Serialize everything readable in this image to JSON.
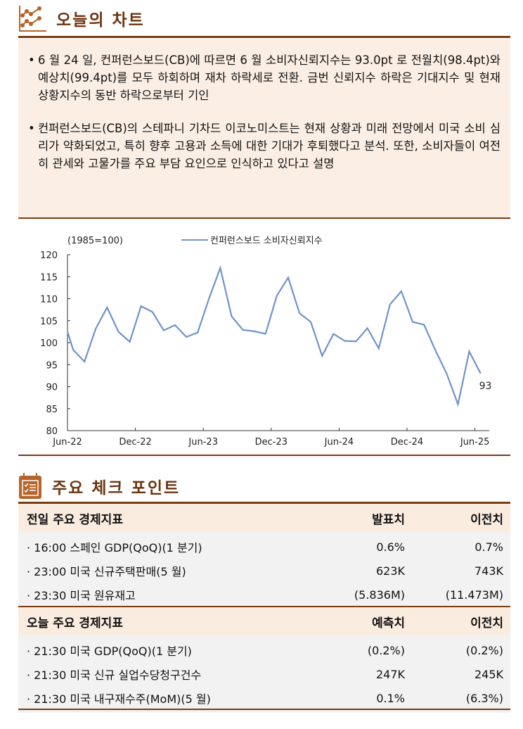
{
  "section1": {
    "title": "오늘의 차트",
    "bullets": [
      "6 월 24 일, 컨퍼런스보드(CB)에 따르면 6 월 소비자신뢰지수는 93.0pt 로 전월치(98.4pt)와 예상치(99.4pt)를 모두 하회하며 재차 하락세로 전환. 금번 신뢰지수 하락은 기대지수 및 현재상황지수의 동반 하락으로부터 기인",
      "컨퍼런스보드(CB)의 스테파니 기차드 이코노미스트는 현재 상황과 미래 전망에서 미국 소비 심리가 약화되었고, 특히 향후 고용과 소득에 대한 기대가 후퇴했다고 분석. 또한, 소비자들이 여전히 관세와 고물가를 주요 부담 요인으로 인식하고 있다고 설명"
    ]
  },
  "chart_data": {
    "type": "line",
    "unit_label": "(1985=100)",
    "legend": "컨퍼런스보드 소비자신뢰지수",
    "legend_position": "top-center",
    "ylim": [
      80,
      120
    ],
    "yticks": [
      "120",
      "115",
      "110",
      "105",
      "100",
      "95",
      "90",
      "85",
      "80"
    ],
    "xticks": [
      "Jun-22",
      "Dec-22",
      "Jun-23",
      "Dec-23",
      "Jun-24",
      "Dec-24",
      "Jun-25"
    ],
    "start_month": "Jun-22",
    "values": [
      98.4,
      95.7,
      103.2,
      108,
      102.5,
      100.2,
      108.3,
      107,
      102.8,
      104,
      101.3,
      102.3,
      110,
      117,
      106,
      102.9,
      102.6,
      102,
      110.7,
      114.8,
      106.7,
      104.7,
      97,
      102,
      100.4,
      100.3,
      103.3,
      98.7,
      108.7,
      111.7,
      104.7,
      104.1,
      98.3,
      93,
      86,
      98,
      93
    ],
    "last_label": "93",
    "color": "#6f93cc"
  },
  "section2": {
    "title": "주요 체크 포인트",
    "yesterday": {
      "header": [
        "전일 주요 경제지표",
        "발표치",
        "이전치"
      ],
      "rows": [
        [
          "· 16:00 스페인 GDP(QoQ)(1 분기)",
          "0.6%",
          "0.7%"
        ],
        [
          "· 23:00 미국 신규주택판매(5 월)",
          "623K",
          "743K"
        ],
        [
          "· 23:30 미국 원유재고",
          "(5.836M)",
          "(11.473M)"
        ]
      ]
    },
    "today": {
      "header": [
        "오늘 주요 경제지표",
        "예측치",
        "이전치"
      ],
      "rows": [
        [
          "· 21:30 미국 GDP(QoQ)(1 분기)",
          "(0.2%)",
          "(0.2%)"
        ],
        [
          "· 21:30 미국 신규 실업수당청구건수",
          "247K",
          "245K"
        ],
        [
          "· 21:30 미국 내구재수주(MoM)(5 월)",
          "0.1%",
          "(6.3%)"
        ]
      ]
    }
  }
}
